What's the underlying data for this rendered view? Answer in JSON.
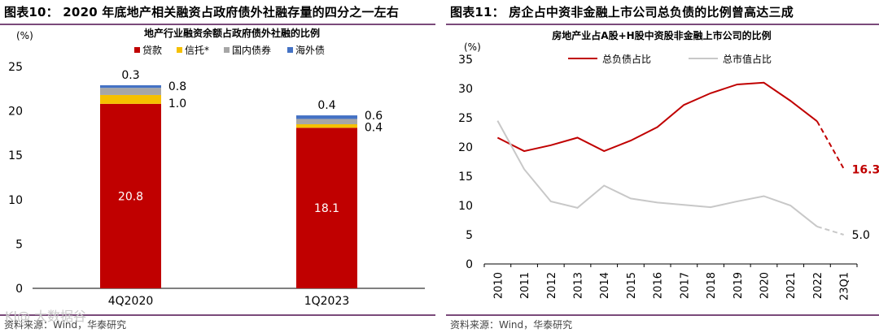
{
  "left": {
    "figure_title": "图表10：  2020 年底地产相关融资占政府债外社融存量的四分之一左右",
    "source": "资料来源：Wind，华泰研究"
  },
  "right": {
    "figure_title": "图表11：  房企占中资非金融上市公司总负债的比例曾高达三成",
    "source": "资料来源：Wind，华泰研究"
  },
  "watermark": "Kl@ 大数据谷",
  "chart_data": [
    {
      "type": "bar",
      "stacked": true,
      "title": "地产行业融资余额占政府债外社融的比例",
      "ylabel": "(%)",
      "ylim": [
        0,
        25
      ],
      "yticks": [
        0,
        5,
        10,
        15,
        20,
        25
      ],
      "categories": [
        "4Q2020",
        "1Q2023"
      ],
      "series": [
        {
          "name": "贷款",
          "color": "#c00000",
          "values": [
            20.8,
            18.1
          ],
          "labels": [
            "20.8",
            "18.1"
          ]
        },
        {
          "name": "信托*",
          "color": "#f5c000",
          "values": [
            1.0,
            0.4
          ],
          "labels": [
            "1.0",
            "0.4"
          ]
        },
        {
          "name": "国内债券",
          "color": "#a6a6a6",
          "values": [
            0.8,
            0.6
          ],
          "labels": [
            "0.8",
            "0.6"
          ]
        },
        {
          "name": "海外债",
          "color": "#4472c4",
          "values": [
            0.3,
            0.4
          ],
          "labels": [
            "0.3",
            "0.4"
          ]
        }
      ],
      "legend": "top"
    },
    {
      "type": "line",
      "title": "房地产业占A股+H股中资股非金融上市公司的比例",
      "ylabel": "(%)",
      "ylim": [
        0,
        35
      ],
      "yticks": [
        0,
        5,
        10,
        15,
        20,
        25,
        30,
        35
      ],
      "x": [
        "2010",
        "2011",
        "2012",
        "2013",
        "2014",
        "2015",
        "2016",
        "2017",
        "2018",
        "2019",
        "2020",
        "2021",
        "2022",
        "23Q1"
      ],
      "series": [
        {
          "name": "总负债占比",
          "color": "#c00000",
          "values": [
            21.6,
            19.3,
            20.3,
            21.6,
            19.3,
            21.1,
            23.4,
            27.2,
            29.2,
            30.7,
            31.0,
            27.9,
            24.4,
            16.3
          ],
          "dashed_last_segment": true,
          "end_label": "16.3"
        },
        {
          "name": "总市值占比",
          "color": "#c8c8c8",
          "values": [
            24.5,
            16.2,
            10.7,
            9.6,
            13.4,
            11.2,
            10.5,
            10.1,
            9.7,
            10.7,
            11.6,
            10.0,
            6.4,
            5.0
          ],
          "dashed_last_segment": true,
          "end_label": "5.0"
        }
      ],
      "legend": "top"
    }
  ]
}
